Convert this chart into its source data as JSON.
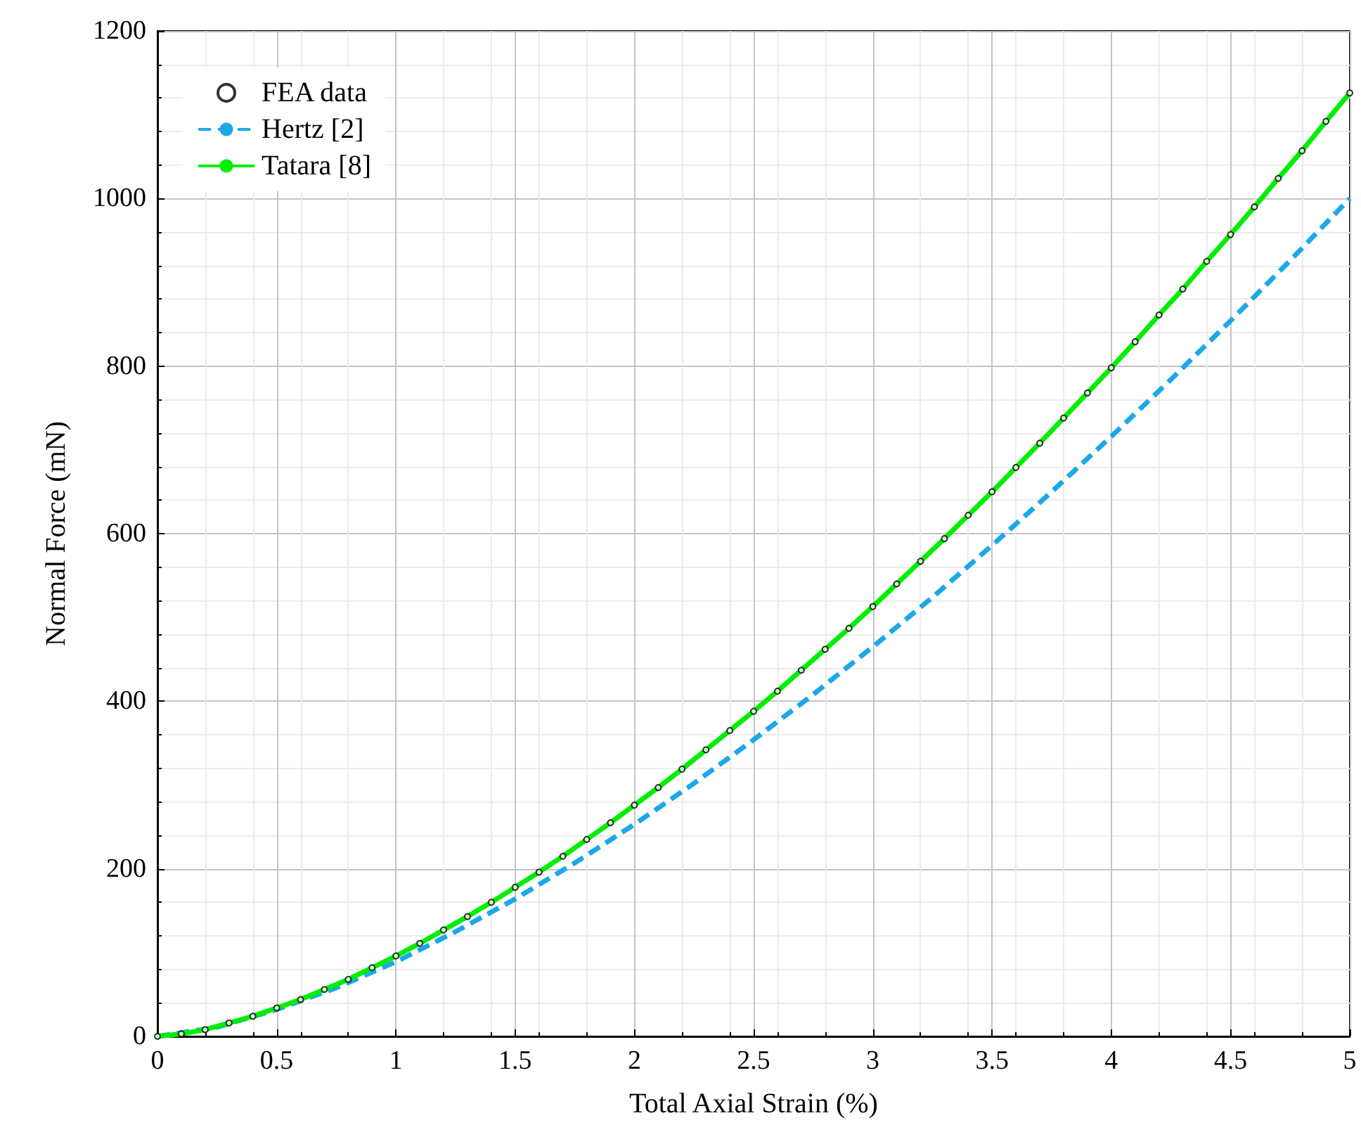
{
  "chart_data": {
    "type": "line",
    "xlabel": "Total Axial Strain (%)",
    "ylabel": "Normal Force (mN)",
    "xlim": [
      0,
      5
    ],
    "ylim": [
      0,
      1200
    ],
    "xticks": [
      0,
      0.5,
      1,
      1.5,
      2,
      2.5,
      3,
      3.5,
      4,
      4.5,
      5
    ],
    "yticks": [
      0,
      200,
      400,
      600,
      800,
      1000,
      1200
    ],
    "grid": true,
    "legend": "top left",
    "x": [
      0,
      0.1,
      0.2,
      0.3,
      0.4,
      0.5,
      0.6,
      0.7,
      0.8,
      0.9,
      1,
      1.1,
      1.2,
      1.3,
      1.4,
      1.5,
      1.6,
      1.7,
      1.8,
      1.9,
      2,
      2.1,
      2.2,
      2.3,
      2.4,
      2.5,
      2.6,
      2.7,
      2.8,
      2.9,
      3,
      3.1,
      3.2,
      3.3,
      3.4,
      3.5,
      3.6,
      3.7,
      3.8,
      3.9,
      4,
      4.1,
      4.2,
      4.3,
      4.4,
      4.5,
      4.6,
      4.7,
      4.8,
      4.9,
      5
    ],
    "series": [
      {
        "name": "FEA data",
        "type": "scatter",
        "marker": "circle",
        "color": "#000000",
        "values": [
          0,
          3,
          8,
          16,
          24,
          34,
          44,
          56,
          68,
          82,
          96,
          111,
          127,
          143,
          160,
          178,
          196,
          215,
          235,
          255,
          276,
          297,
          319,
          342,
          365,
          388,
          412,
          437,
          462,
          487,
          513,
          540,
          567,
          594,
          622,
          650,
          679,
          708,
          738,
          768,
          798,
          829,
          861,
          892,
          925,
          957,
          990,
          1024,
          1057,
          1092,
          1126
        ]
      },
      {
        "name": "Hertz [2]",
        "type": "line",
        "line_style": "dashed",
        "color": "#1ba8e8",
        "x": [
          0,
          0.25,
          0.5,
          0.75,
          1,
          1.25,
          1.5,
          1.75,
          2,
          2.25,
          2.5,
          2.75,
          3,
          3.25,
          3.5,
          3.75,
          4,
          4.25,
          4.5,
          4.75,
          5
        ],
        "values": [
          0,
          11,
          32,
          58,
          89,
          125,
          164,
          207,
          253,
          302,
          354,
          408,
          465,
          524,
          586,
          650,
          716,
          784,
          854,
          926,
          1000
        ]
      },
      {
        "name": "Tatara [8]",
        "type": "line",
        "line_style": "solid",
        "color": "#00ee00",
        "values": [
          0,
          3,
          8,
          16,
          24,
          34,
          44,
          56,
          68,
          82,
          96,
          111,
          127,
          143,
          160,
          178,
          196,
          215,
          235,
          255,
          276,
          297,
          319,
          342,
          365,
          388,
          412,
          437,
          462,
          487,
          513,
          540,
          567,
          594,
          622,
          650,
          679,
          708,
          738,
          768,
          798,
          829,
          861,
          892,
          925,
          957,
          990,
          1024,
          1057,
          1092,
          1126
        ]
      }
    ]
  }
}
